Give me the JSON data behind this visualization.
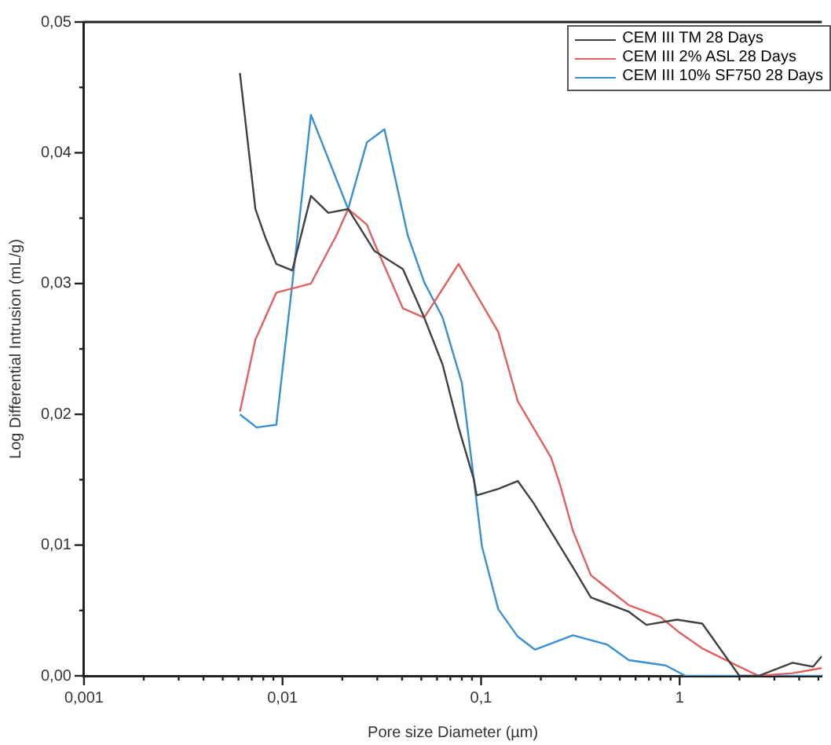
{
  "chart_data": {
    "type": "line",
    "xlabel": "Pore size Diameter (µm)",
    "ylabel": "Log Differential Intrusion (mL/g)",
    "log": "x",
    "grid": false,
    "legend": "top right",
    "marker": "none",
    "line_style": "solid",
    "xlim": [
      0.001,
      5.2
    ],
    "ylim": [
      0,
      0.05
    ],
    "xticks": [
      {
        "value": 0.001,
        "label": "0,001"
      },
      {
        "value": 0.002,
        "label": null
      },
      {
        "value": 0.003,
        "label": null
      },
      {
        "value": 0.004,
        "label": null
      },
      {
        "value": 0.005,
        "label": null
      },
      {
        "value": 0.006,
        "label": null
      },
      {
        "value": 0.007,
        "label": null
      },
      {
        "value": 0.008,
        "label": null
      },
      {
        "value": 0.009,
        "label": null
      },
      {
        "value": 0.01,
        "label": "0,01"
      },
      {
        "value": 0.02,
        "label": null
      },
      {
        "value": 0.03,
        "label": null
      },
      {
        "value": 0.04,
        "label": null
      },
      {
        "value": 0.05,
        "label": null
      },
      {
        "value": 0.06,
        "label": null
      },
      {
        "value": 0.07,
        "label": null
      },
      {
        "value": 0.08,
        "label": null
      },
      {
        "value": 0.09,
        "label": null
      },
      {
        "value": 0.1,
        "label": "0,1"
      },
      {
        "value": 0.2,
        "label": null
      },
      {
        "value": 0.3,
        "label": null
      },
      {
        "value": 0.4,
        "label": null
      },
      {
        "value": 0.5,
        "label": null
      },
      {
        "value": 0.6,
        "label": null
      },
      {
        "value": 0.7,
        "label": null
      },
      {
        "value": 0.8,
        "label": null
      },
      {
        "value": 0.9,
        "label": null
      },
      {
        "value": 1,
        "label": "1"
      },
      {
        "value": 2,
        "label": null
      },
      {
        "value": 3,
        "label": null
      },
      {
        "value": 4,
        "label": null
      },
      {
        "value": 5,
        "label": null
      }
    ],
    "yticks": [
      {
        "value": 0,
        "label": "0,00"
      },
      {
        "value": 0.005,
        "label": null
      },
      {
        "value": 0.01,
        "label": "0,01"
      },
      {
        "value": 0.015,
        "label": null
      },
      {
        "value": 0.02,
        "label": "0,02"
      },
      {
        "value": 0.025,
        "label": null
      },
      {
        "value": 0.03,
        "label": "0,03"
      },
      {
        "value": 0.035,
        "label": null
      },
      {
        "value": 0.04,
        "label": "0,04"
      },
      {
        "value": 0.045,
        "label": null
      },
      {
        "value": 0.05,
        "label": "0,05"
      }
    ],
    "series": [
      {
        "name": "CEM III TM 28 Days",
        "color": "#404040",
        "x": [
          0.0061,
          0.0073,
          0.0082,
          0.0093,
          0.0112,
          0.0139,
          0.017,
          0.0214,
          0.029,
          0.0404,
          0.0517,
          0.064,
          0.077,
          0.092,
          0.095,
          0.122,
          0.153,
          0.184,
          0.29,
          0.357,
          0.555,
          0.68,
          0.97,
          1.3,
          2.0,
          2.5,
          3.7,
          4.7,
          5.2
        ],
        "values": [
          0.0461,
          0.0357,
          0.0335,
          0.0315,
          0.031,
          0.0367,
          0.0354,
          0.0357,
          0.0325,
          0.0311,
          0.0274,
          0.0238,
          0.019,
          0.015,
          0.0138,
          0.0143,
          0.0149,
          0.0132,
          0.0083,
          0.006,
          0.0049,
          0.0039,
          0.0043,
          0.004,
          0,
          0,
          0.001,
          0.0007,
          0.0015
        ]
      },
      {
        "name": "CEM III 2% ASL 28 Days",
        "color": "#e06060",
        "x": [
          0.0061,
          0.0073,
          0.0093,
          0.0139,
          0.0187,
          0.0214,
          0.0266,
          0.029,
          0.0404,
          0.0517,
          0.077,
          0.122,
          0.153,
          0.225,
          0.25,
          0.29,
          0.357,
          0.555,
          0.8,
          1.0,
          1.3,
          2.0,
          2.5,
          3.7,
          5.2
        ],
        "values": [
          0.0202,
          0.0257,
          0.0293,
          0.03,
          0.0337,
          0.0357,
          0.0345,
          0.0331,
          0.0281,
          0.0274,
          0.0315,
          0.0263,
          0.021,
          0.0167,
          0.0146,
          0.0111,
          0.0077,
          0.0054,
          0.0045,
          0.0033,
          0.0021,
          0.0007,
          0,
          0.0002,
          0.0006
        ]
      },
      {
        "name": "CEM III 10% SF750 28 Days",
        "color": "#3a8fd0",
        "x": [
          0.0061,
          0.0074,
          0.0093,
          0.0112,
          0.0139,
          0.0214,
          0.0266,
          0.0326,
          0.0427,
          0.0517,
          0.064,
          0.08,
          0.092,
          0.101,
          0.122,
          0.153,
          0.187,
          0.29,
          0.43,
          0.555,
          0.85,
          1.07,
          2.0,
          5.2
        ],
        "values": [
          0.02,
          0.019,
          0.0192,
          0.03,
          0.0429,
          0.0357,
          0.0408,
          0.0418,
          0.0337,
          0.0301,
          0.0274,
          0.0224,
          0.015,
          0.0099,
          0.0051,
          0.003,
          0.002,
          0.0031,
          0.0024,
          0.0012,
          0.0008,
          0,
          0,
          0
        ]
      }
    ]
  }
}
